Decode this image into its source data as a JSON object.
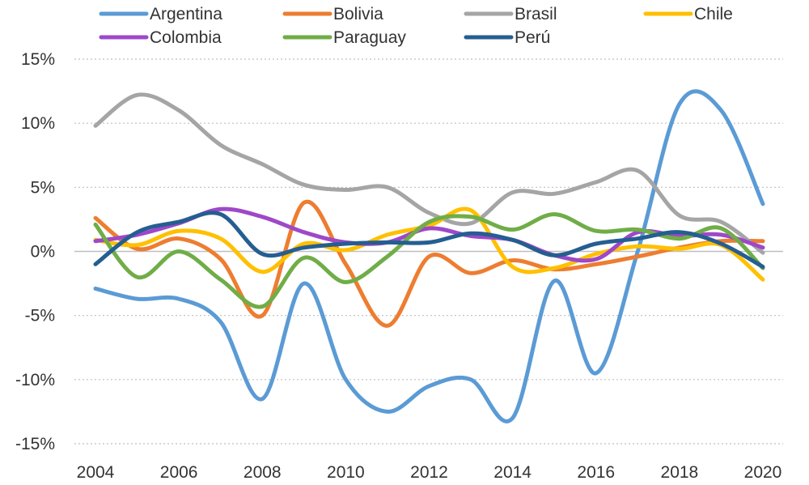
{
  "chart_data": {
    "type": "line",
    "title": "",
    "xlabel": "",
    "ylabel": "",
    "x": [
      2004,
      2005,
      2006,
      2007,
      2008,
      2009,
      2010,
      2011,
      2012,
      2013,
      2014,
      2015,
      2016,
      2017,
      2018,
      2019,
      2020
    ],
    "x_tick_labels": [
      "2004",
      "2006",
      "2008",
      "2010",
      "2012",
      "2014",
      "2016",
      "2018",
      "2020"
    ],
    "y_tick_labels": [
      "15%",
      "10%",
      "5%",
      "0%",
      "-5%",
      "-10%",
      "-15%"
    ],
    "y_ticks": [
      15,
      10,
      5,
      0,
      -5,
      -10,
      -15
    ],
    "ylim": [
      -15,
      15
    ],
    "xlim": [
      2004,
      2020
    ],
    "grid": true,
    "legend_position": "top",
    "series": [
      {
        "name": "Argentina",
        "color": "#5B9BD5",
        "values": [
          -2.9,
          -3.7,
          -3.7,
          -5.5,
          -11.5,
          -2.5,
          -10.0,
          -12.5,
          -10.5,
          -10.0,
          -13.0,
          -2.3,
          -9.5,
          0.0,
          11.5,
          11.0,
          3.7
        ]
      },
      {
        "name": "Bolivia",
        "color": "#ED7D31",
        "values": [
          2.6,
          0.2,
          1.0,
          -0.6,
          -5.0,
          3.8,
          -1.0,
          -5.8,
          -0.4,
          -1.7,
          -0.7,
          -1.4,
          -1.0,
          -0.4,
          0.3,
          0.8,
          0.8
        ]
      },
      {
        "name": "Brasil",
        "color": "#A5A5A5",
        "values": [
          9.8,
          12.2,
          11.0,
          8.3,
          6.8,
          5.2,
          4.8,
          5.0,
          3.0,
          2.2,
          4.6,
          4.5,
          5.4,
          6.3,
          2.8,
          2.3,
          -0.1
        ]
      },
      {
        "name": "Chile",
        "color": "#FFC000",
        "values": [
          0.9,
          0.5,
          1.6,
          1.0,
          -1.6,
          0.6,
          0.1,
          1.3,
          2.0,
          3.2,
          -1.2,
          -1.3,
          -0.2,
          0.4,
          0.2,
          0.5,
          -2.2
        ]
      },
      {
        "name": "Colombia",
        "color": "#9E48C9",
        "values": [
          0.8,
          1.3,
          2.2,
          3.3,
          2.7,
          1.5,
          0.7,
          0.7,
          1.8,
          1.2,
          0.9,
          -0.3,
          -0.6,
          1.5,
          1.2,
          1.3,
          0.3
        ]
      },
      {
        "name": "Paraguay",
        "color": "#70AD47",
        "values": [
          2.1,
          -2.0,
          0.0,
          -2.2,
          -4.3,
          -0.5,
          -2.4,
          -0.4,
          2.3,
          2.7,
          1.7,
          2.9,
          1.6,
          1.7,
          1.0,
          1.8,
          -1.3
        ]
      },
      {
        "name": "Perú",
        "color": "#255E91",
        "values": [
          -1.0,
          1.5,
          2.3,
          2.9,
          -0.2,
          0.3,
          0.6,
          0.7,
          0.7,
          1.4,
          0.9,
          -0.3,
          0.6,
          1.0,
          1.5,
          0.6,
          -1.2
        ]
      }
    ]
  }
}
